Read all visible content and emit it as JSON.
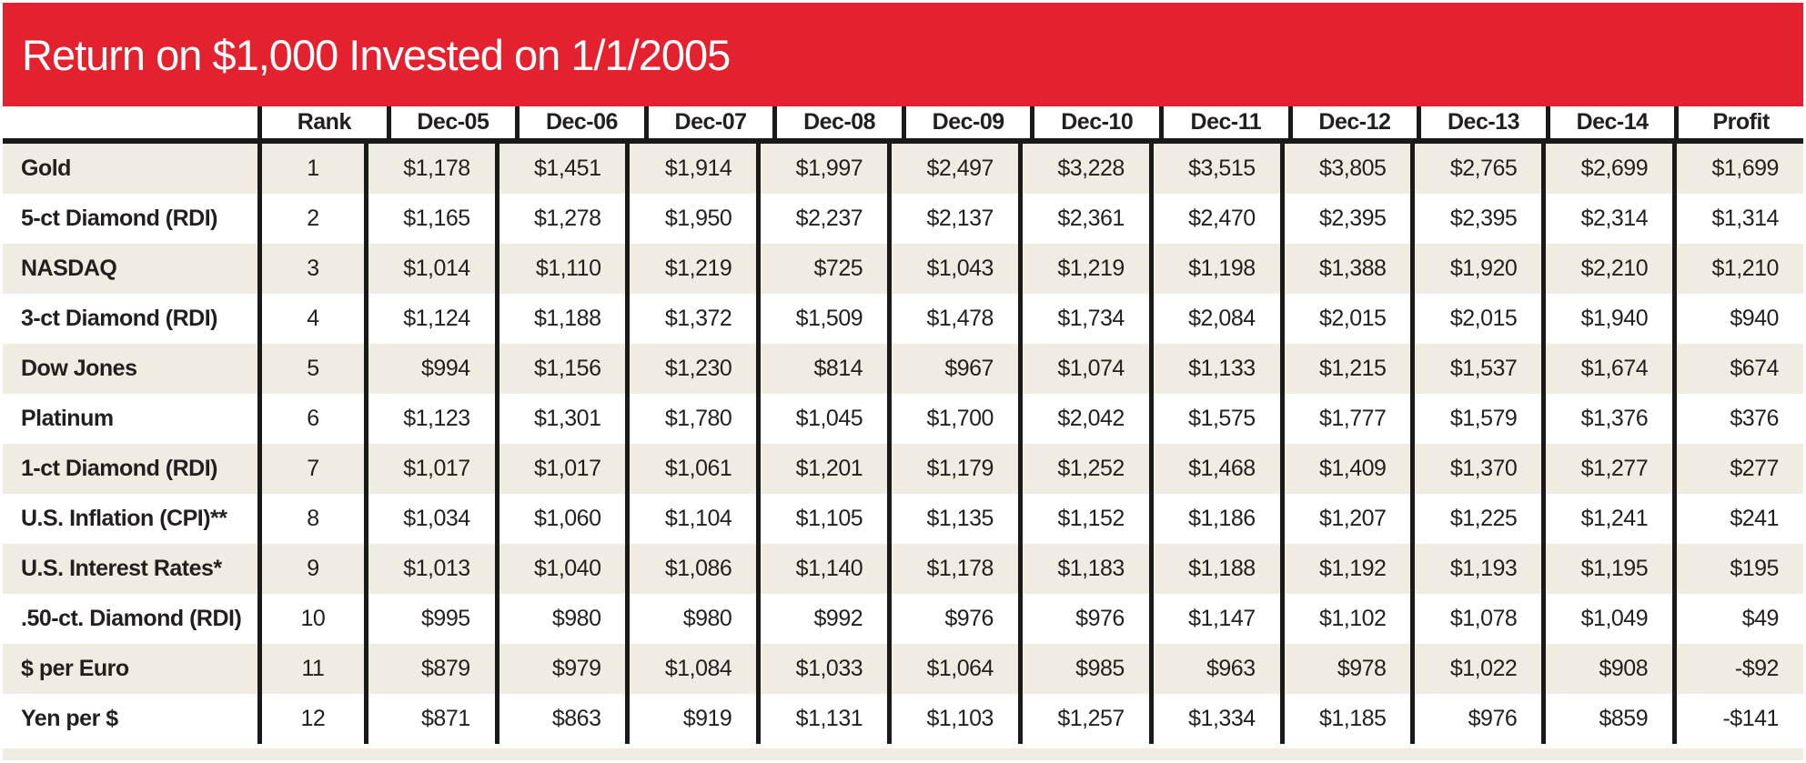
{
  "title": "Return on $1,000 Invested on 1/1/2005",
  "colors": {
    "banner_red": "#e4212e",
    "row_beige": "#f1ece1",
    "row_white": "#ffffff",
    "rule_black": "#1a1a1a",
    "text": "#231f20",
    "title_text": "#ffffff"
  },
  "table": {
    "columns": [
      "",
      "Rank",
      "Dec-05",
      "Dec-06",
      "Dec-07",
      "Dec-08",
      "Dec-09",
      "Dec-10",
      "Dec-11",
      "Dec-12",
      "Dec-13",
      "Dec-14",
      "Profit"
    ],
    "rows": [
      {
        "label": "Gold",
        "rank": "1",
        "values": [
          "$1,178",
          "$1,451",
          "$1,914",
          "$1,997",
          "$2,497",
          "$3,228",
          "$3,515",
          "$3,805",
          "$2,765",
          "$2,699"
        ],
        "profit": "$1,699"
      },
      {
        "label": "5-ct Diamond (RDI)",
        "rank": "2",
        "values": [
          "$1,165",
          "$1,278",
          "$1,950",
          "$2,237",
          "$2,137",
          "$2,361",
          "$2,470",
          "$2,395",
          "$2,395",
          "$2,314"
        ],
        "profit": "$1,314"
      },
      {
        "label": "NASDAQ",
        "rank": "3",
        "values": [
          "$1,014",
          "$1,110",
          "$1,219",
          "$725",
          "$1,043",
          "$1,219",
          "$1,198",
          "$1,388",
          "$1,920",
          "$2,210"
        ],
        "profit": "$1,210"
      },
      {
        "label": "3-ct Diamond (RDI)",
        "rank": "4",
        "values": [
          "$1,124",
          "$1,188",
          "$1,372",
          "$1,509",
          "$1,478",
          "$1,734",
          "$2,084",
          "$2,015",
          "$2,015",
          "$1,940"
        ],
        "profit": "$940"
      },
      {
        "label": "Dow Jones",
        "rank": "5",
        "values": [
          "$994",
          "$1,156",
          "$1,230",
          "$814",
          "$967",
          "$1,074",
          "$1,133",
          "$1,215",
          "$1,537",
          "$1,674"
        ],
        "profit": "$674"
      },
      {
        "label": "Platinum",
        "rank": "6",
        "values": [
          "$1,123",
          "$1,301",
          "$1,780",
          "$1,045",
          "$1,700",
          "$2,042",
          "$1,575",
          "$1,777",
          "$1,579",
          "$1,376"
        ],
        "profit": "$376"
      },
      {
        "label": "1-ct Diamond (RDI)",
        "rank": "7",
        "values": [
          "$1,017",
          "$1,017",
          "$1,061",
          "$1,201",
          "$1,179",
          "$1,252",
          "$1,468",
          "$1,409",
          "$1,370",
          "$1,277"
        ],
        "profit": "$277"
      },
      {
        "label": "U.S. Inflation (CPI)**",
        "rank": "8",
        "values": [
          "$1,034",
          "$1,060",
          "$1,104",
          "$1,105",
          "$1,135",
          "$1,152",
          "$1,186",
          "$1,207",
          "$1,225",
          "$1,241"
        ],
        "profit": "$241"
      },
      {
        "label": "U.S. Interest Rates*",
        "rank": "9",
        "values": [
          "$1,013",
          "$1,040",
          "$1,086",
          "$1,140",
          "$1,178",
          "$1,183",
          "$1,188",
          "$1,192",
          "$1,193",
          "$1,195"
        ],
        "profit": "$195"
      },
      {
        "label": ".50-ct. Diamond (RDI)",
        "rank": "10",
        "values": [
          "$995",
          "$980",
          "$980",
          "$992",
          "$976",
          "$976",
          "$1,147",
          "$1,102",
          "$1,078",
          "$1,049"
        ],
        "profit": "$49"
      },
      {
        "label": "$ per Euro",
        "rank": "11",
        "values": [
          "$879",
          "$979",
          "$1,084",
          "$1,033",
          "$1,064",
          "$985",
          "$963",
          "$978",
          "$1,022",
          "$908"
        ],
        "profit": "-$92"
      },
      {
        "label": "Yen per $",
        "rank": "12",
        "values": [
          "$871",
          "$863",
          "$919",
          "$1,131",
          "$1,103",
          "$1,257",
          "$1,334",
          "$1,185",
          "$976",
          "$859"
        ],
        "profit": "-$141"
      }
    ]
  },
  "chart_data": {
    "type": "table",
    "title": "Return on $1,000 Invested on 1/1/2005",
    "columns": [
      "Rank",
      "Dec-05",
      "Dec-06",
      "Dec-07",
      "Dec-08",
      "Dec-09",
      "Dec-10",
      "Dec-11",
      "Dec-12",
      "Dec-13",
      "Dec-14",
      "Profit"
    ],
    "rows": [
      {
        "name": "Gold",
        "rank": 1,
        "values": [
          1178,
          1451,
          1914,
          1997,
          2497,
          3228,
          3515,
          3805,
          2765,
          2699
        ],
        "profit": 1699
      },
      {
        "name": "5-ct Diamond (RDI)",
        "rank": 2,
        "values": [
          1165,
          1278,
          1950,
          2237,
          2137,
          2361,
          2470,
          2395,
          2395,
          2314
        ],
        "profit": 1314
      },
      {
        "name": "NASDAQ",
        "rank": 3,
        "values": [
          1014,
          1110,
          1219,
          725,
          1043,
          1219,
          1198,
          1388,
          1920,
          2210
        ],
        "profit": 1210
      },
      {
        "name": "3-ct Diamond (RDI)",
        "rank": 4,
        "values": [
          1124,
          1188,
          1372,
          1509,
          1478,
          1734,
          2084,
          2015,
          2015,
          1940
        ],
        "profit": 940
      },
      {
        "name": "Dow Jones",
        "rank": 5,
        "values": [
          994,
          1156,
          1230,
          814,
          967,
          1074,
          1133,
          1215,
          1537,
          1674
        ],
        "profit": 674
      },
      {
        "name": "Platinum",
        "rank": 6,
        "values": [
          1123,
          1301,
          1780,
          1045,
          1700,
          2042,
          1575,
          1777,
          1579,
          1376
        ],
        "profit": 376
      },
      {
        "name": "1-ct Diamond (RDI)",
        "rank": 7,
        "values": [
          1017,
          1017,
          1061,
          1201,
          1179,
          1252,
          1468,
          1409,
          1370,
          1277
        ],
        "profit": 277
      },
      {
        "name": "U.S. Inflation (CPI)**",
        "rank": 8,
        "values": [
          1034,
          1060,
          1104,
          1105,
          1135,
          1152,
          1186,
          1207,
          1225,
          1241
        ],
        "profit": 241
      },
      {
        "name": "U.S. Interest Rates*",
        "rank": 9,
        "values": [
          1013,
          1040,
          1086,
          1140,
          1178,
          1183,
          1188,
          1192,
          1193,
          1195
        ],
        "profit": 195
      },
      {
        "name": ".50-ct. Diamond (RDI)",
        "rank": 10,
        "values": [
          995,
          980,
          980,
          992,
          976,
          976,
          1147,
          1102,
          1078,
          1049
        ],
        "profit": 49
      },
      {
        "name": "$ per Euro",
        "rank": 11,
        "values": [
          879,
          979,
          1084,
          1033,
          1064,
          985,
          963,
          978,
          1022,
          908
        ],
        "profit": -92
      },
      {
        "name": "Yen per $",
        "rank": 12,
        "values": [
          871,
          863,
          919,
          1131,
          1103,
          1257,
          1334,
          1185,
          976,
          859
        ],
        "profit": -141
      }
    ]
  }
}
